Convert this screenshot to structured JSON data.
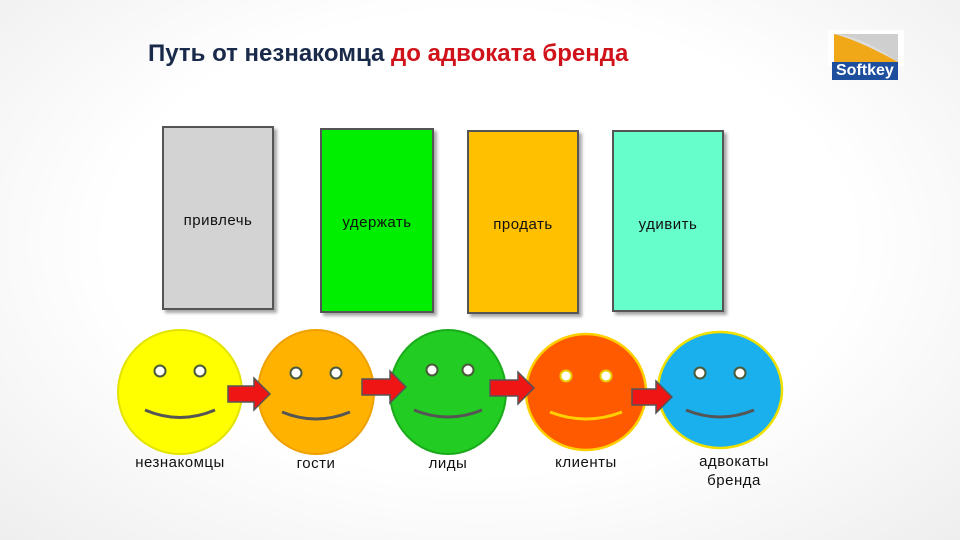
{
  "title": {
    "main": "Путь от незнакомца ",
    "accent": "до адвоката бренда"
  },
  "logo": {
    "text": "Softkey"
  },
  "stages": [
    {
      "label": "привлечь",
      "color": "#d3d3d3"
    },
    {
      "label": "удержать",
      "color": "#00ee00"
    },
    {
      "label": "продать",
      "color": "#ffc000"
    },
    {
      "label": "удивить",
      "color": "#66ffcc"
    }
  ],
  "faces": [
    {
      "label": "незнакомцы",
      "color": "#ffff00"
    },
    {
      "label": "гости",
      "color": "#ffb300"
    },
    {
      "label": "лиды",
      "color": "#22cc22"
    },
    {
      "label": "клиенты",
      "color": "#ff5a00"
    },
    {
      "label": "адвокаты бренда",
      "color": "#1ab0ee"
    }
  ],
  "arrow_color": "#ee1111"
}
